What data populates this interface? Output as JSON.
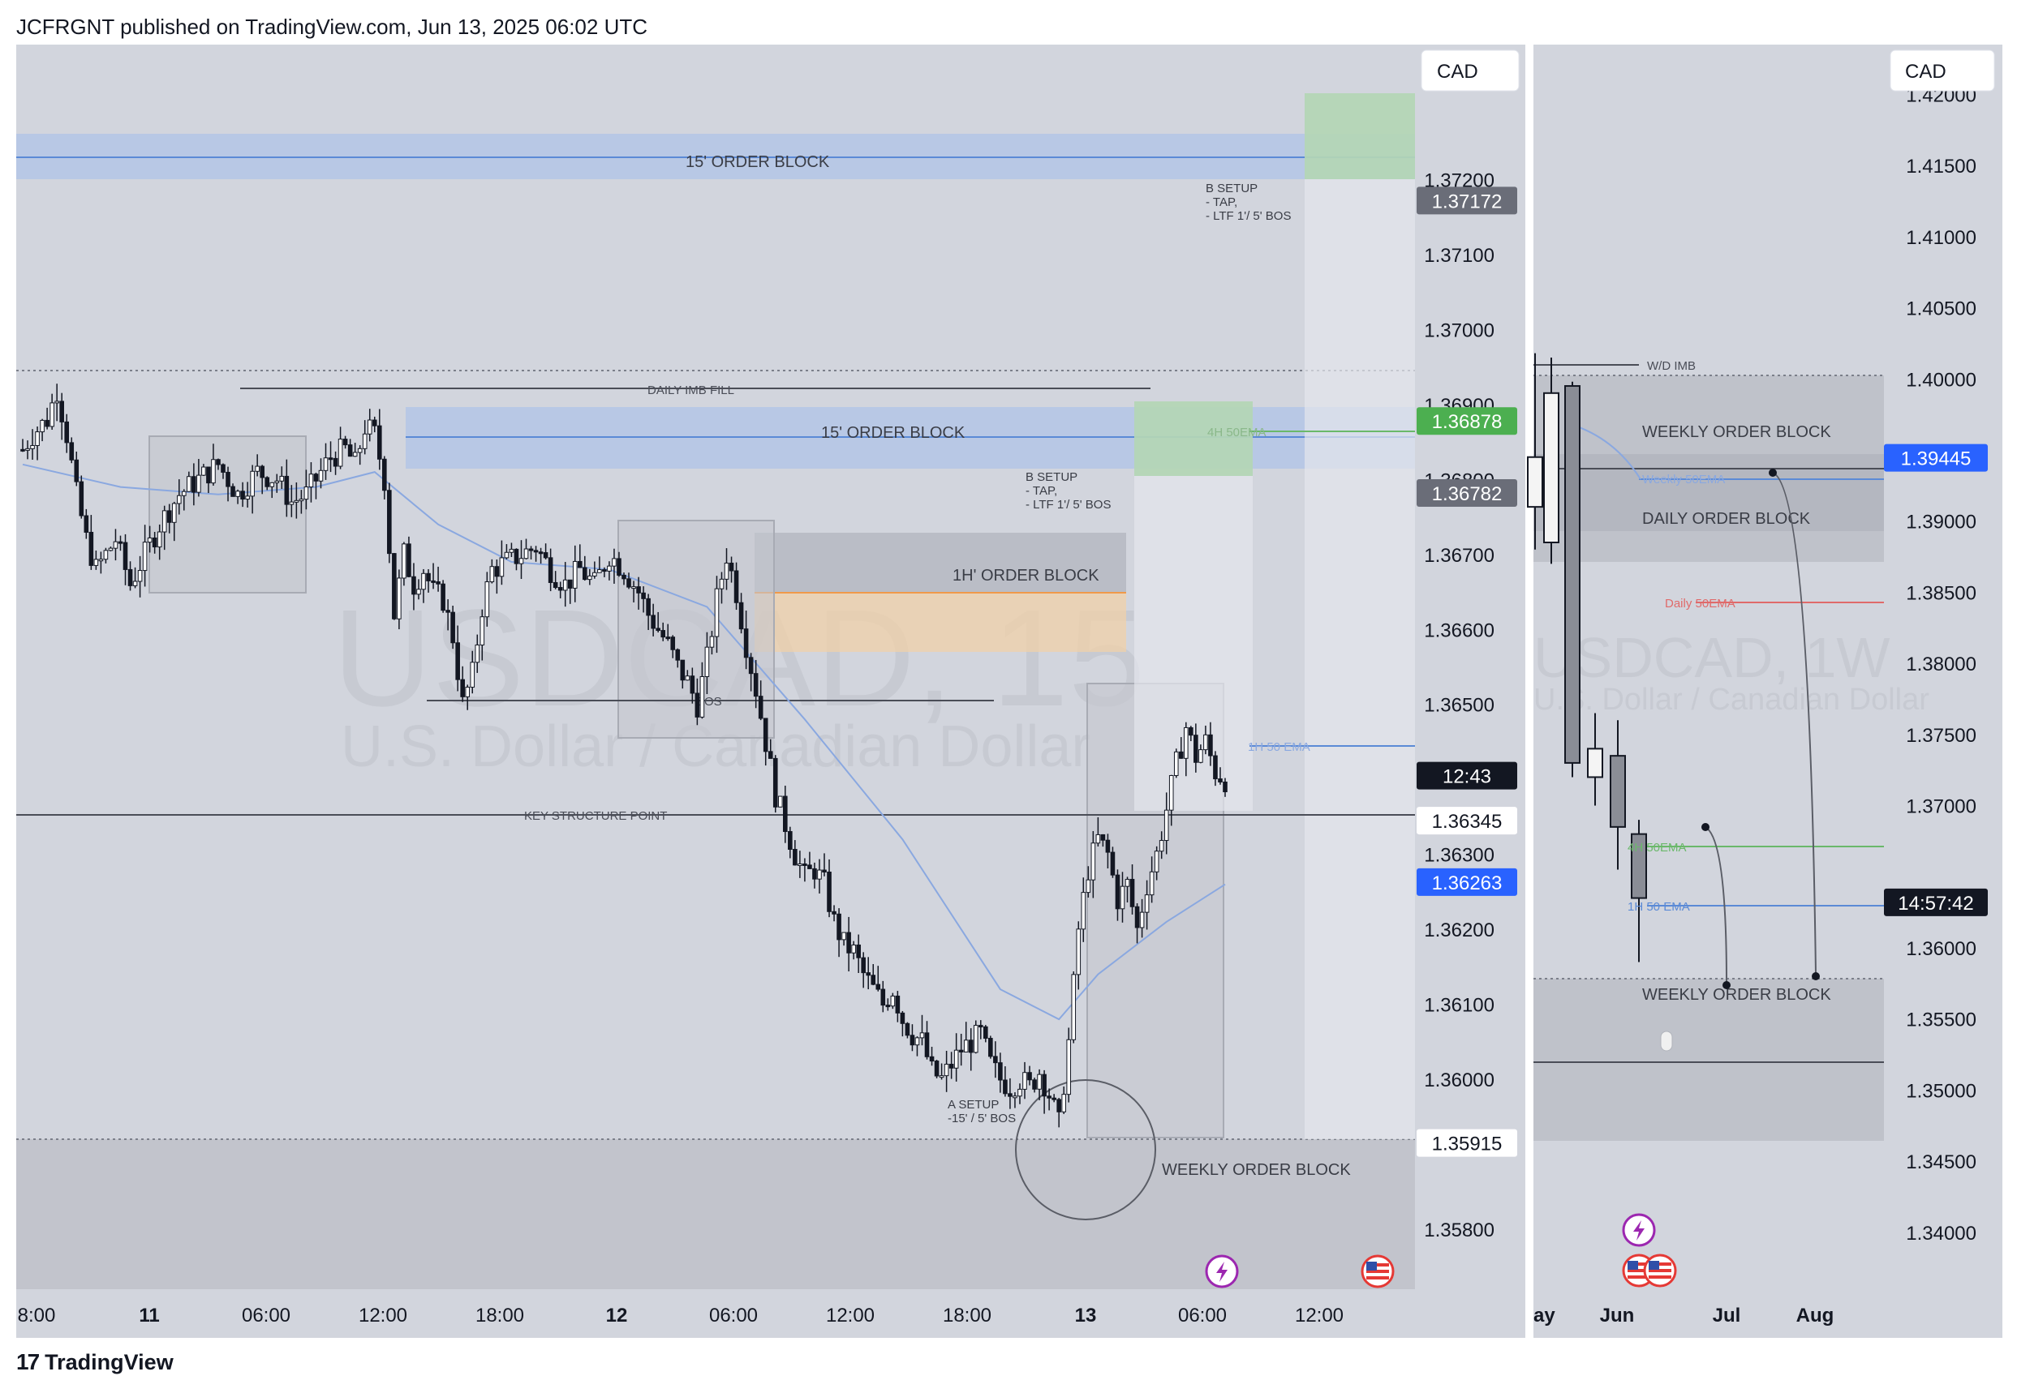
{
  "header": {
    "text": "JCFRGNT published on TradingView.com, Jun 13, 2025 06:02 UTC"
  },
  "footer": {
    "brand": "TradingView",
    "logo_icon": "tradingview-logo-icon"
  },
  "colors": {
    "panel_bg": "#d2d5dd",
    "blue_zone": "#b4c6e6",
    "blue_line": "#5b8ad6",
    "green_zone": "#a8d2a8",
    "orange_zone": "#f0d0a8",
    "orange_line": "#f09a4a",
    "ema_blue": "#8aa8e0",
    "ema_green": "#6ab86a",
    "ema_red": "#e06a6a",
    "price_blue": "#2962ff",
    "price_green": "#4caf50",
    "price_grey": "#6a6d78"
  },
  "left_chart": {
    "currency_badge": "CAD",
    "watermark_symbol": "USDCAD, 15",
    "watermark_name": "U.S. Dollar / Canadian Dollar",
    "y_ticks": [
      "1.37200",
      "1.37100",
      "1.37000",
      "1.36900",
      "1.36800",
      "1.36700",
      "1.36600",
      "1.36500",
      "1.36300",
      "1.36200",
      "1.36100",
      "1.36000",
      "1.35800"
    ],
    "y_tick_values": [
      1.372,
      1.371,
      1.37,
      1.369,
      1.368,
      1.367,
      1.366,
      1.365,
      1.363,
      1.362,
      1.361,
      1.36,
      1.358
    ],
    "x_ticks": [
      "8:00",
      "11",
      "06:00",
      "12:00",
      "18:00",
      "12",
      "06:00",
      "12:00",
      "18:00",
      "13",
      "06:00",
      "12:00"
    ],
    "x_bold": [
      false,
      true,
      false,
      false,
      false,
      true,
      false,
      false,
      false,
      true,
      false,
      false
    ],
    "price_labels": [
      {
        "text": "1.37172",
        "value": 1.37172,
        "style": "grey"
      },
      {
        "text": "1.36878",
        "value": 1.36878,
        "style": "green"
      },
      {
        "text": "1.36782",
        "value": 1.36782,
        "style": "grey"
      },
      {
        "text": "12:43",
        "value": 1.36405,
        "style": "black"
      },
      {
        "text": "1.36345",
        "value": 1.36345,
        "style": "white"
      },
      {
        "text": "1.36263",
        "value": 1.36263,
        "style": "blue"
      },
      {
        "text": "1.35915",
        "value": 1.35915,
        "style": "white"
      }
    ],
    "annotations": {
      "ob15_top": "15' ORDER BLOCK",
      "ob15_mid": "15' ORDER BLOCK",
      "daily_imb": "DAILY IMB FILL",
      "ob1h": "1H' ORDER BLOCK",
      "bos": "BOS",
      "key_structure": "KEY STRUCTURE POINT",
      "weekly_ob": "WEEKLY ORDER BLOCK",
      "ema_1h": "1H 50 EMA",
      "ema_4h": "4H 50EMA",
      "b_setup_1": [
        "B SETUP",
        "- TAP,",
        "- LTF 1'/ 5' BOS"
      ],
      "b_setup_2": [
        "B SETUP",
        "- TAP,",
        "- LTF 1'/ 5' BOS"
      ],
      "a_setup": [
        "A SETUP",
        "-15' / 5' BOS"
      ]
    },
    "icons": [
      "lightning-icon",
      "us-flag-icon"
    ]
  },
  "right_chart": {
    "currency_badge": "CAD",
    "watermark_symbol": "USDCAD, 1W",
    "watermark_name": "U.S. Dollar / Canadian Dollar",
    "y_ticks": [
      "1.42000",
      "1.41500",
      "1.41000",
      "1.40500",
      "1.40000",
      "1.39000",
      "1.38500",
      "1.38000",
      "1.37500",
      "1.37000",
      "1.36000",
      "1.35500",
      "1.35000",
      "1.34500",
      "1.34000"
    ],
    "y_tick_values": [
      1.42,
      1.415,
      1.41,
      1.405,
      1.4,
      1.39,
      1.385,
      1.38,
      1.375,
      1.37,
      1.36,
      1.355,
      1.35,
      1.345,
      1.34
    ],
    "x_ticks": [
      "ay",
      "Jun",
      "Jul",
      "Aug"
    ],
    "x_bold": [
      true,
      true,
      true,
      true
    ],
    "price_labels": [
      {
        "text": "1.39445",
        "value": 1.39445,
        "style": "blue"
      },
      {
        "text": "14:57:42",
        "value": 1.3632,
        "style": "black"
      }
    ],
    "annotations": {
      "wd_imb": "W/D IMB",
      "weekly_ob_top": "WEEKLY ORDER BLOCK",
      "daily_ob": "DAILY ORDER BLOCK",
      "weekly_50ema": "Weekly 50EMA",
      "daily_50ema": "Daily 50EMA",
      "ema_4h": "4H 50EMA",
      "ema_1h": "1H 50 EMA",
      "weekly_ob_bottom": "WEEKLY ORDER BLOCK"
    }
  },
  "chart_data": [
    {
      "type": "candlestick",
      "title": "USDCAD, 15",
      "x_ticks": [
        "8:00",
        "11",
        "06:00",
        "12:00",
        "18:00",
        "12",
        "06:00",
        "12:00",
        "18:00",
        "13",
        "06:00",
        "12:00"
      ],
      "ylim": [
        1.3572,
        1.3738
      ],
      "key_levels": {
        "key_structure_point": 1.36345,
        "daily_imb_fill": 1.3689,
        "bos": 1.3649,
        "weekly_ob_top": 1.35915
      },
      "close_path": [
        [
          0,
          1.3684
        ],
        [
          2,
          1.3686
        ],
        [
          5,
          1.3688
        ],
        [
          7,
          1.3692
        ],
        [
          9,
          1.3686
        ],
        [
          11,
          1.3678
        ],
        [
          13,
          1.3672
        ],
        [
          15,
          1.3668
        ],
        [
          17,
          1.367
        ],
        [
          19,
          1.3672
        ],
        [
          22,
          1.3666
        ],
        [
          25,
          1.367
        ],
        [
          28,
          1.3674
        ],
        [
          32,
          1.3678
        ],
        [
          36,
          1.368
        ],
        [
          40,
          1.3682
        ],
        [
          44,
          1.3678
        ],
        [
          48,
          1.3681
        ],
        [
          52,
          1.368
        ],
        [
          55,
          1.3677
        ],
        [
          58,
          1.3678
        ],
        [
          61,
          1.3681
        ],
        [
          63,
          1.3683
        ],
        [
          66,
          1.3684
        ],
        [
          68,
          1.3682
        ],
        [
          70,
          1.3687
        ],
        [
          72,
          1.3686
        ],
        [
          74,
          1.368
        ],
        [
          76,
          1.3662
        ],
        [
          78,
          1.367
        ],
        [
          80,
          1.3666
        ],
        [
          82,
          1.3668
        ],
        [
          84,
          1.3665
        ],
        [
          86,
          1.3664
        ],
        [
          88,
          1.3659
        ],
        [
          90,
          1.365
        ],
        [
          92,
          1.3654
        ],
        [
          94,
          1.3663
        ],
        [
          96,
          1.3668
        ],
        [
          99,
          1.3669
        ],
        [
          102,
          1.367
        ],
        [
          105,
          1.3671
        ],
        [
          108,
          1.3668
        ],
        [
          111,
          1.3666
        ],
        [
          114,
          1.3668
        ],
        [
          117,
          1.3666
        ],
        [
          120,
          1.367
        ],
        [
          123,
          1.3668
        ],
        [
          126,
          1.3665
        ],
        [
          128,
          1.3662
        ],
        [
          130,
          1.366
        ],
        [
          132,
          1.3658
        ],
        [
          134,
          1.3655
        ],
        [
          136,
          1.3653
        ],
        [
          138,
          1.365
        ],
        [
          140,
          1.3656
        ],
        [
          142,
          1.3664
        ],
        [
          144,
          1.367
        ],
        [
          146,
          1.3665
        ],
        [
          148,
          1.3658
        ],
        [
          150,
          1.3652
        ],
        [
          152,
          1.3645
        ],
        [
          154,
          1.3638
        ],
        [
          156,
          1.3634
        ],
        [
          158,
          1.363
        ],
        [
          160,
          1.3627
        ],
        [
          162,
          1.3628
        ],
        [
          164,
          1.3626
        ],
        [
          166,
          1.3621
        ],
        [
          168,
          1.3618
        ],
        [
          170,
          1.3617
        ],
        [
          172,
          1.3614
        ],
        [
          174,
          1.3612
        ],
        [
          176,
          1.361
        ],
        [
          178,
          1.3612
        ],
        [
          180,
          1.3608
        ],
        [
          182,
          1.3606
        ],
        [
          184,
          1.3605
        ],
        [
          186,
          1.3601
        ],
        [
          188,
          1.36
        ],
        [
          190,
          1.3602
        ],
        [
          192,
          1.3604
        ],
        [
          194,
          1.3605
        ],
        [
          196,
          1.3606
        ],
        [
          198,
          1.3602
        ],
        [
          200,
          1.36
        ],
        [
          202,
          1.3599
        ],
        [
          204,
          1.36
        ],
        [
          206,
          1.3599
        ],
        [
          208,
          1.3601
        ],
        [
          210,
          1.3598
        ],
        [
          212,
          1.3594
        ],
        [
          214,
          1.3605
        ],
        [
          216,
          1.362
        ],
        [
          218,
          1.3628
        ],
        [
          220,
          1.3632
        ],
        [
          222,
          1.363
        ],
        [
          224,
          1.3624
        ],
        [
          226,
          1.3626
        ],
        [
          228,
          1.362
        ],
        [
          230,
          1.3626
        ],
        [
          232,
          1.363
        ],
        [
          234,
          1.3636
        ],
        [
          236,
          1.3642
        ],
        [
          238,
          1.3647
        ],
        [
          240,
          1.3643
        ],
        [
          242,
          1.3645
        ],
        [
          244,
          1.3641
        ],
        [
          246,
          1.364
        ]
      ],
      "ema_1h_path": [
        [
          0,
          1.3682
        ],
        [
          20,
          1.3679
        ],
        [
          40,
          1.3678
        ],
        [
          60,
          1.3679
        ],
        [
          72,
          1.3681
        ],
        [
          85,
          1.3674
        ],
        [
          100,
          1.3669
        ],
        [
          120,
          1.3668
        ],
        [
          140,
          1.3663
        ],
        [
          160,
          1.3648
        ],
        [
          180,
          1.3632
        ],
        [
          200,
          1.3612
        ],
        [
          212,
          1.3608
        ],
        [
          220,
          1.3614
        ],
        [
          234,
          1.3621
        ],
        [
          246,
          1.3626
        ]
      ]
    },
    {
      "type": "candlestick",
      "title": "USDCAD, 1W",
      "x_ticks": [
        "ay",
        "Jun",
        "Jul",
        "Aug"
      ],
      "ylim": [
        1.336,
        1.4235
      ],
      "candles": [
        {
          "o": 1.391,
          "h": 1.4018,
          "l": 1.388,
          "c": 1.3945
        },
        {
          "o": 1.3885,
          "h": 1.4015,
          "l": 1.387,
          "c": 1.399
        },
        {
          "o": 1.3995,
          "h": 1.3998,
          "l": 1.372,
          "c": 1.373
        },
        {
          "o": 1.372,
          "h": 1.3765,
          "l": 1.37,
          "c": 1.374
        },
        {
          "o": 1.3735,
          "h": 1.376,
          "l": 1.3655,
          "c": 1.3685
        },
        {
          "o": 1.368,
          "h": 1.369,
          "l": 1.359,
          "c": 1.3635
        }
      ],
      "key_levels": {
        "weekly_50ema": 1.39445,
        "daily_50ema": 1.3858,
        "ema_4h": 1.3682,
        "ema_1h": 1.364,
        "wd_imb": 1.4026
      }
    }
  ]
}
